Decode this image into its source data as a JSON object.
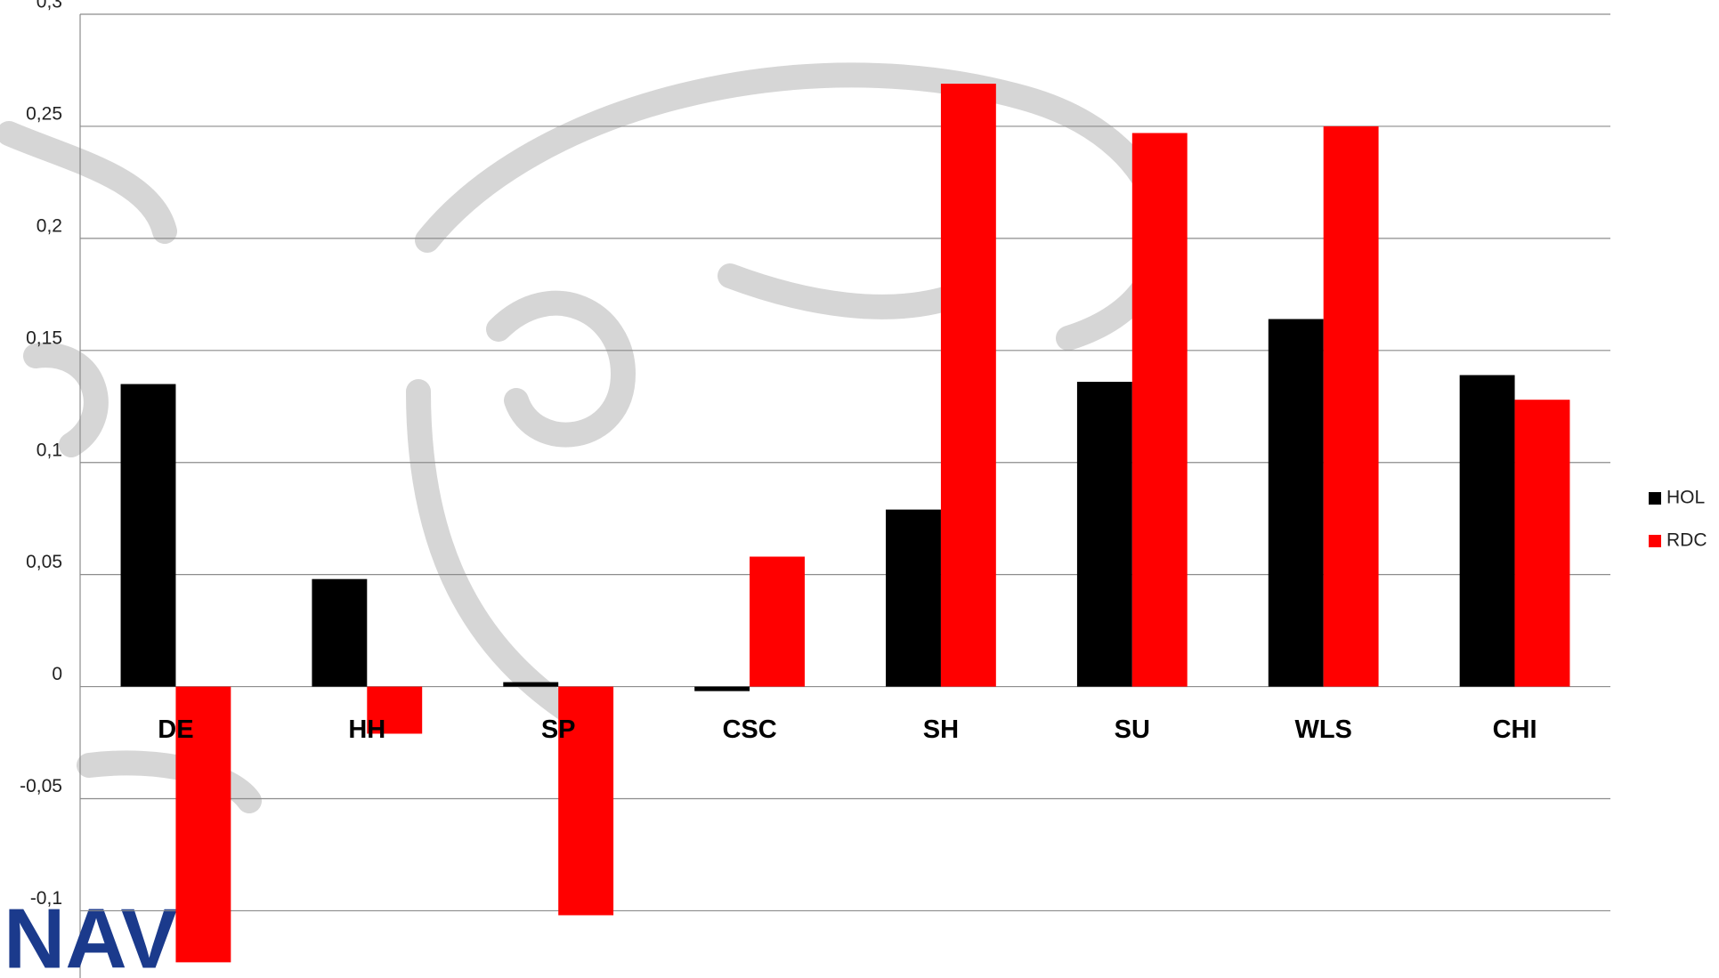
{
  "chart_data": {
    "type": "bar",
    "categories": [
      "DE",
      "HH",
      "SP",
      "CSC",
      "SH",
      "SU",
      "WLS",
      "CHI"
    ],
    "series": [
      {
        "name": "HOL",
        "color": "#000000",
        "values": [
          0.135,
          0.048,
          0.002,
          -0.002,
          0.079,
          0.136,
          0.164,
          0.139
        ]
      },
      {
        "name": "RDC",
        "color": "#ff0000",
        "values": [
          -0.123,
          -0.021,
          -0.102,
          0.058,
          0.269,
          0.247,
          0.25,
          0.128
        ]
      }
    ],
    "ylim": [
      -0.13,
      0.3
    ],
    "yticks": [
      {
        "value": -0.1,
        "label": "-0,1"
      },
      {
        "value": -0.05,
        "label": "-0,05"
      },
      0,
      {
        "value": 0.05,
        "label": "0,05"
      },
      {
        "value": 0.1,
        "label": "0,1"
      },
      {
        "value": 0.15,
        "label": "0,15"
      },
      {
        "value": 0.2,
        "label": "0,2"
      },
      {
        "value": 0.25,
        "label": "0,25"
      },
      {
        "value": 0.3,
        "label": "0,3"
      }
    ],
    "grid": true,
    "legend": "right",
    "logo": "NAV"
  }
}
